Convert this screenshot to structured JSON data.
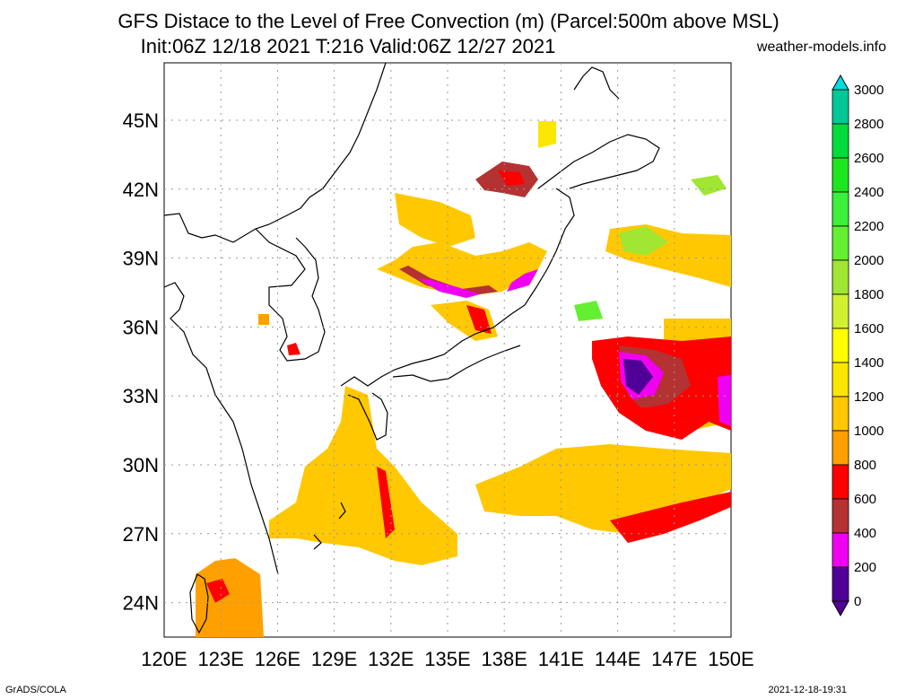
{
  "title": "GFS Distace to the Level of Free Convection (m) (Parcel:500m above MSL)",
  "subtitle": "Init:06Z 12/18 2021 T:216 Valid:06Z 12/27 2021",
  "credit": "weather-models.info",
  "footer_left": "GrADS/COLA",
  "footer_right": "2021-12-18-19:31",
  "map": {
    "lon_labels": [
      "120E",
      "123E",
      "126E",
      "129E",
      "132E",
      "135E",
      "138E",
      "141E",
      "144E",
      "147E",
      "150E"
    ],
    "lat_labels": [
      "45N",
      "42N",
      "39N",
      "36N",
      "33N",
      "30N",
      "27N",
      "24N"
    ],
    "lon_range": [
      120,
      150
    ],
    "lat_range": [
      22.5,
      47.5
    ]
  },
  "colorbar": {
    "levels": [
      "3000",
      "2800",
      "2600",
      "2400",
      "2200",
      "2000",
      "1800",
      "1600",
      "1400",
      "1200",
      "1000",
      "800",
      "600",
      "400",
      "200",
      "0"
    ],
    "colors": [
      "#00dcdc",
      "#00c896",
      "#00dc3c",
      "#1ee61e",
      "#3cf03c",
      "#64f032",
      "#a0e632",
      "#d2f032",
      "#ffff00",
      "#fae600",
      "#ffc800",
      "#ffa000",
      "#ff0000",
      "#b43232",
      "#f000f0",
      "#500096"
    ]
  }
}
